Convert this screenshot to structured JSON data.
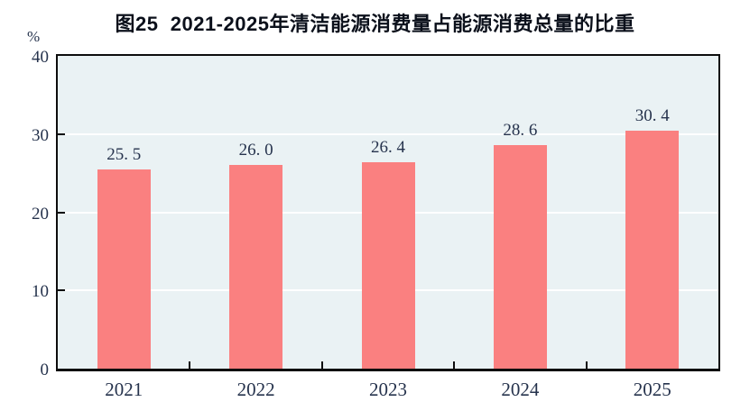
{
  "title": "图25  2021-2025年清洁能源消费量占能源消费总量的比重",
  "colors": {
    "bar": "#FA8080",
    "plot_bg": "#EAF2F4",
    "grid": "#FFFFFF",
    "axis": "#0D0D0D",
    "label_text": "#26334D",
    "title_text": "#0B101B"
  },
  "chart_data": {
    "type": "bar",
    "title": "图25  2021-2025年清洁能源消费量占能源消费总量的比重",
    "categories": [
      "2021",
      "2022",
      "2023",
      "2024",
      "2025"
    ],
    "values": [
      25.5,
      26.0,
      26.4,
      28.6,
      30.4
    ],
    "value_labels": [
      "25. 5",
      "26. 0",
      "26. 4",
      "28. 6",
      "30. 4"
    ],
    "xlabel": "",
    "ylabel": "%",
    "ylim": [
      0,
      40
    ],
    "yticks": [
      0,
      10,
      20,
      30,
      40
    ],
    "grid": true,
    "legend_position": "none"
  }
}
